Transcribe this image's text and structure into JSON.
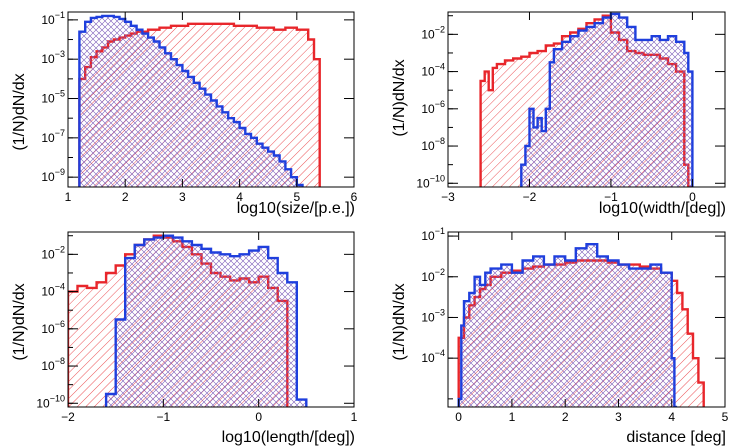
{
  "chart_data": [
    {
      "type": "histogram",
      "xlabel": "log10(size/[p.e.])",
      "ylabel": "(1/N)dN/dx",
      "xlim": [
        1,
        6
      ],
      "ylim": [
        -9.5,
        -0.6
      ],
      "yscale": "log",
      "xticks": [
        1,
        2,
        3,
        4,
        5,
        6
      ],
      "xtick_labels": [
        "1",
        "2",
        "3",
        "4",
        "5",
        "6"
      ],
      "yticks": [
        -9,
        -7,
        -5,
        -3,
        -1
      ],
      "ytick_labels": [
        "10-9",
        "10-7",
        "10-5",
        "10-3",
        "10-1"
      ],
      "series": [
        {
          "name": "red",
          "color": "#e8262b",
          "hatch": "diag",
          "edges": [
            1.0,
            1.2,
            1.3,
            1.4,
            1.5,
            1.6,
            1.7,
            1.8,
            1.9,
            2.0,
            2.1,
            2.2,
            2.3,
            2.4,
            2.5,
            2.6,
            2.7,
            2.8,
            2.9,
            3.0,
            3.1,
            3.2,
            3.3,
            3.4,
            3.5,
            3.6,
            3.7,
            3.8,
            3.9,
            4.0,
            4.1,
            4.2,
            4.3,
            4.4,
            4.5,
            4.6,
            4.7,
            4.8,
            4.9,
            5.0,
            5.1,
            5.2,
            5.3,
            5.4,
            6.0
          ],
          "logvalues": [
            null,
            -4.0,
            -3.4,
            -2.9,
            -2.6,
            -2.4,
            -2.1,
            -2.0,
            -1.9,
            -1.8,
            -1.7,
            -1.6,
            -1.6,
            -1.5,
            -1.5,
            -1.4,
            -1.4,
            -1.3,
            -1.3,
            -1.3,
            -1.2,
            -1.2,
            -1.2,
            -1.2,
            -1.2,
            -1.2,
            -1.2,
            -1.2,
            -1.3,
            -1.3,
            -1.3,
            -1.3,
            -1.4,
            -1.4,
            -1.4,
            -1.5,
            -1.5,
            -1.4,
            -1.4,
            -1.5,
            -1.5,
            -2.0,
            -3.0,
            null
          ]
        },
        {
          "name": "blue",
          "color": "#1f3fdd",
          "hatch": "cross",
          "edges": [
            1.0,
            1.2,
            1.3,
            1.4,
            1.5,
            1.6,
            1.7,
            1.8,
            1.9,
            2.0,
            2.1,
            2.2,
            2.3,
            2.4,
            2.5,
            2.6,
            2.7,
            2.8,
            2.9,
            3.0,
            3.1,
            3.2,
            3.3,
            3.4,
            3.5,
            3.6,
            3.7,
            3.8,
            3.9,
            4.0,
            4.1,
            4.2,
            4.3,
            4.4,
            4.5,
            4.6,
            4.7,
            4.8,
            4.9,
            5.0,
            5.1,
            6.0
          ],
          "logvalues": [
            null,
            -1.6,
            -1.1,
            -0.9,
            -0.85,
            -0.8,
            -0.8,
            -0.85,
            -0.95,
            -1.1,
            -1.3,
            -1.5,
            -1.7,
            -1.9,
            -2.1,
            -2.4,
            -2.7,
            -3.0,
            -3.3,
            -3.6,
            -3.9,
            -4.2,
            -4.5,
            -4.8,
            -5.1,
            -5.4,
            -5.7,
            -6.0,
            -6.2,
            -6.5,
            -6.8,
            -7.0,
            -7.3,
            -7.5,
            -7.7,
            -7.9,
            -8.2,
            -8.6,
            -9.0,
            -9.4,
            null
          ]
        }
      ]
    },
    {
      "type": "histogram",
      "xlabel": "log10(width/[deg])",
      "ylabel": "(1/N)dN/dx",
      "xlim": [
        -3,
        0.4
      ],
      "ylim": [
        -10.2,
        -0.8
      ],
      "yscale": "log",
      "xticks": [
        -3,
        -2,
        -1,
        0
      ],
      "xtick_labels": [
        "−3",
        "−2",
        "−1",
        "0"
      ],
      "yticks": [
        -10,
        -8,
        -6,
        -4,
        -2
      ],
      "ytick_labels": [
        "10-10",
        "10-8",
        "10-6",
        "10-4",
        "10-2"
      ],
      "series": [
        {
          "name": "red",
          "color": "#e8262b",
          "hatch": "diag",
          "edges": [
            -2.6,
            -2.55,
            -2.5,
            -2.45,
            -2.4,
            -2.3,
            -2.2,
            -2.1,
            -2.0,
            -1.9,
            -1.8,
            -1.7,
            -1.6,
            -1.5,
            -1.4,
            -1.3,
            -1.2,
            -1.1,
            -1.0,
            -0.9,
            -0.8,
            -0.7,
            -0.6,
            -0.5,
            -0.4,
            -0.3,
            -0.2,
            -0.1,
            -0.05,
            0.0
          ],
          "logvalues": [
            -4.5,
            -4.0,
            -5.0,
            -3.8,
            -3.6,
            -3.4,
            -3.3,
            -3.2,
            -3.0,
            -2.9,
            -2.6,
            -2.5,
            -2.1,
            -1.9,
            -1.7,
            -1.4,
            -1.2,
            -1.0,
            -1.9,
            -2.3,
            -2.9,
            -3.0,
            -3.1,
            -3.1,
            -3.3,
            -3.6,
            -4.0,
            -9.0,
            -10.2
          ]
        },
        {
          "name": "blue",
          "color": "#1f3fdd",
          "hatch": "cross",
          "edges": [
            -2.1,
            -2.05,
            -2.0,
            -1.95,
            -1.9,
            -1.85,
            -1.8,
            -1.75,
            -1.7,
            -1.6,
            -1.5,
            -1.4,
            -1.3,
            -1.2,
            -1.1,
            -1.0,
            -0.9,
            -0.8,
            -0.7,
            -0.6,
            -0.5,
            -0.4,
            -0.3,
            -0.2,
            -0.1,
            -0.05,
            0.0
          ],
          "logvalues": [
            -9.0,
            -8.0,
            -6.0,
            -7.0,
            -6.5,
            -7.2,
            -6.0,
            -3.5,
            -2.8,
            -2.4,
            -2.1,
            -1.8,
            -1.6,
            -1.4,
            -1.1,
            -0.9,
            -1.1,
            -1.6,
            -2.3,
            -2.3,
            -2.1,
            -2.3,
            -2.1,
            -2.4,
            -3.0,
            -4.0
          ]
        }
      ]
    },
    {
      "type": "histogram",
      "xlabel": "log10(length/[deg])",
      "ylabel": "(1/N)dN/dx",
      "xlim": [
        -2,
        1
      ],
      "ylim": [
        -10.2,
        -0.8
      ],
      "yscale": "log",
      "xticks": [
        -2,
        -1,
        0,
        1
      ],
      "xtick_labels": [
        "−2",
        "−1",
        "0",
        "1"
      ],
      "yticks": [
        -10,
        -8,
        -6,
        -4,
        -2
      ],
      "ytick_labels": [
        "10-10",
        "10-8",
        "10-6",
        "10-4",
        "10-2"
      ],
      "series": [
        {
          "name": "red",
          "color": "#e8262b",
          "hatch": "diag",
          "edges": [
            -2.0,
            -1.9,
            -1.8,
            -1.7,
            -1.6,
            -1.5,
            -1.4,
            -1.3,
            -1.2,
            -1.1,
            -1.0,
            -0.9,
            -0.8,
            -0.7,
            -0.6,
            -0.5,
            -0.4,
            -0.3,
            -0.2,
            -0.1,
            0.0,
            0.1,
            0.2,
            0.3
          ],
          "logvalues": [
            -4.0,
            -3.7,
            -3.8,
            -3.5,
            -3.0,
            -2.6,
            -2.0,
            -1.5,
            -1.2,
            -1.0,
            -1.1,
            -1.3,
            -1.6,
            -2.0,
            -2.5,
            -3.0,
            -3.2,
            -3.4,
            -3.3,
            -3.5,
            -3.2,
            -3.8,
            -4.5
          ]
        },
        {
          "name": "blue",
          "color": "#1f3fdd",
          "hatch": "cross",
          "edges": [
            -1.6,
            -1.5,
            -1.4,
            -1.3,
            -1.2,
            -1.1,
            -1.0,
            -0.9,
            -0.8,
            -0.7,
            -0.6,
            -0.5,
            -0.4,
            -0.3,
            -0.2,
            -0.1,
            0.0,
            0.1,
            0.2,
            0.3,
            0.4,
            0.5
          ],
          "logvalues": [
            -9.5,
            -5.5,
            -2.2,
            -1.5,
            -1.2,
            -1.1,
            -1.0,
            -1.1,
            -1.3,
            -1.5,
            -1.7,
            -1.9,
            -2.0,
            -2.1,
            -2.0,
            -1.8,
            -1.6,
            -2.2,
            -3.0,
            -3.5,
            -9.8
          ]
        }
      ]
    },
    {
      "type": "histogram",
      "xlabel": "distance [deg]",
      "ylabel": "(1/N)dN/dx",
      "xlim": [
        -0.2,
        5
      ],
      "ylim": [
        -5.2,
        -0.9
      ],
      "yscale": "log",
      "xticks": [
        0,
        1,
        2,
        3,
        4,
        5
      ],
      "xtick_labels": [
        "0",
        "1",
        "2",
        "3",
        "4",
        "5"
      ],
      "yticks": [
        -4,
        -3,
        -2,
        -1
      ],
      "ytick_labels": [
        "10-4",
        "10-3",
        "10-2",
        "10-1"
      ],
      "series": [
        {
          "name": "red",
          "color": "#e8262b",
          "hatch": "diag",
          "edges": [
            0.0,
            0.1,
            0.2,
            0.3,
            0.4,
            0.5,
            0.6,
            0.8,
            1.0,
            1.2,
            1.4,
            1.6,
            1.8,
            2.0,
            2.2,
            2.4,
            2.6,
            2.8,
            3.0,
            3.2,
            3.4,
            3.6,
            3.8,
            4.0,
            4.1,
            4.2,
            4.3,
            4.4,
            4.5,
            4.6
          ],
          "logvalues": [
            -3.5,
            -3.0,
            -2.7,
            -2.5,
            -2.3,
            -2.2,
            -2.0,
            -1.9,
            -1.85,
            -1.8,
            -1.75,
            -1.7,
            -1.7,
            -1.65,
            -1.6,
            -1.6,
            -1.6,
            -1.65,
            -1.7,
            -1.7,
            -1.75,
            -1.8,
            -1.9,
            -2.1,
            -2.4,
            -2.8,
            -3.4,
            -4.0,
            -4.6
          ]
        },
        {
          "name": "blue",
          "color": "#1f3fdd",
          "hatch": "cross",
          "edges": [
            0.0,
            0.05,
            0.1,
            0.2,
            0.3,
            0.4,
            0.5,
            0.6,
            0.8,
            1.0,
            1.2,
            1.4,
            1.6,
            1.8,
            2.0,
            2.2,
            2.4,
            2.6,
            2.8,
            3.0,
            3.2,
            3.4,
            3.6,
            3.8,
            4.0,
            4.05,
            4.1
          ],
          "logvalues": [
            -5.0,
            -3.2,
            -2.6,
            -2.4,
            -2.0,
            -2.2,
            -1.9,
            -1.8,
            -1.7,
            -1.9,
            -1.6,
            -1.5,
            -1.7,
            -1.5,
            -1.6,
            -1.3,
            -1.2,
            -1.5,
            -1.6,
            -1.7,
            -1.8,
            -1.8,
            -1.7,
            -1.9,
            -4.0,
            -5.2
          ]
        }
      ]
    }
  ]
}
